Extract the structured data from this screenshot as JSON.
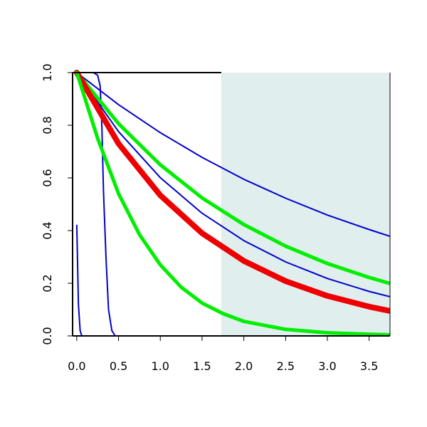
{
  "chart_data": {
    "type": "line",
    "title": "",
    "xlabel": "",
    "ylabel": "",
    "xlim": [
      -0.05,
      3.75
    ],
    "ylim": [
      0,
      1
    ],
    "x_ticks": [
      0.0,
      0.5,
      1.0,
      1.5,
      2.0,
      2.5,
      3.0,
      3.5
    ],
    "x_tick_labels": [
      "0.0",
      "0.5",
      "1.0",
      "1.5",
      "2.0",
      "2.5",
      "3.0",
      "3.5"
    ],
    "y_ticks": [
      0.0,
      0.2,
      0.4,
      0.6,
      0.8,
      1.0
    ],
    "y_tick_labels": [
      "0.0",
      "0.2",
      "0.4",
      "0.6",
      "0.8",
      "1.0"
    ],
    "grid": false,
    "legend": "none",
    "shaded_region": {
      "x_from": 1.73,
      "x_to": 3.75,
      "color": "#e0eeee"
    },
    "series": [
      {
        "color": "#0000cc",
        "width": 2,
        "x": [
          0,
          0.02,
          0.04,
          0.06,
          0.1
        ],
        "y": [
          0.42,
          0.12,
          0.02,
          0.0,
          0.0
        ]
      },
      {
        "color": "#0000cc",
        "width": 2,
        "x": [
          0,
          0.2,
          0.25,
          0.28,
          0.3,
          0.32,
          0.35,
          0.38,
          0.42,
          0.46,
          3.75
        ],
        "y": [
          1.0,
          1.0,
          0.99,
          0.95,
          0.8,
          0.55,
          0.3,
          0.1,
          0.02,
          0.0,
          0.0
        ]
      },
      {
        "color": "#0000cc",
        "width": 2,
        "x": [
          0,
          0.5,
          1.0,
          1.5,
          2.0,
          2.5,
          3.0,
          3.5,
          3.75
        ],
        "y": [
          1.0,
          0.878,
          0.772,
          0.678,
          0.595,
          0.523,
          0.459,
          0.404,
          0.378
        ]
      },
      {
        "color": "#0000cc",
        "width": 2,
        "x": [
          0,
          0.5,
          1.0,
          1.5,
          2.0,
          2.5,
          3.0,
          3.5,
          3.75
        ],
        "y": [
          1.0,
          0.776,
          0.601,
          0.466,
          0.362,
          0.281,
          0.218,
          0.169,
          0.149
        ]
      },
      {
        "color": "#00ee00",
        "width": 5,
        "x": [
          0,
          0.5,
          1.0,
          1.5,
          2.0,
          2.5,
          3.0,
          3.5,
          3.75
        ],
        "y": [
          1.0,
          0.806,
          0.65,
          0.524,
          0.423,
          0.341,
          0.275,
          0.222,
          0.199
        ]
      },
      {
        "color": "#ee0000",
        "width": 8,
        "x": [
          0,
          0.5,
          1.0,
          1.5,
          2.0,
          2.5,
          3.0,
          3.5,
          3.75
        ],
        "y": [
          1.0,
          0.73,
          0.534,
          0.39,
          0.285,
          0.208,
          0.152,
          0.111,
          0.095
        ]
      },
      {
        "color": "#00ee00",
        "width": 5,
        "x": [
          0,
          0.25,
          0.5,
          0.75,
          1.0,
          1.25,
          1.5,
          1.75,
          2.0,
          2.5,
          3.0,
          3.5,
          3.75
        ],
        "y": [
          1.0,
          0.75,
          0.54,
          0.385,
          0.27,
          0.185,
          0.125,
          0.085,
          0.055,
          0.025,
          0.012,
          0.006,
          0.004
        ]
      }
    ]
  }
}
